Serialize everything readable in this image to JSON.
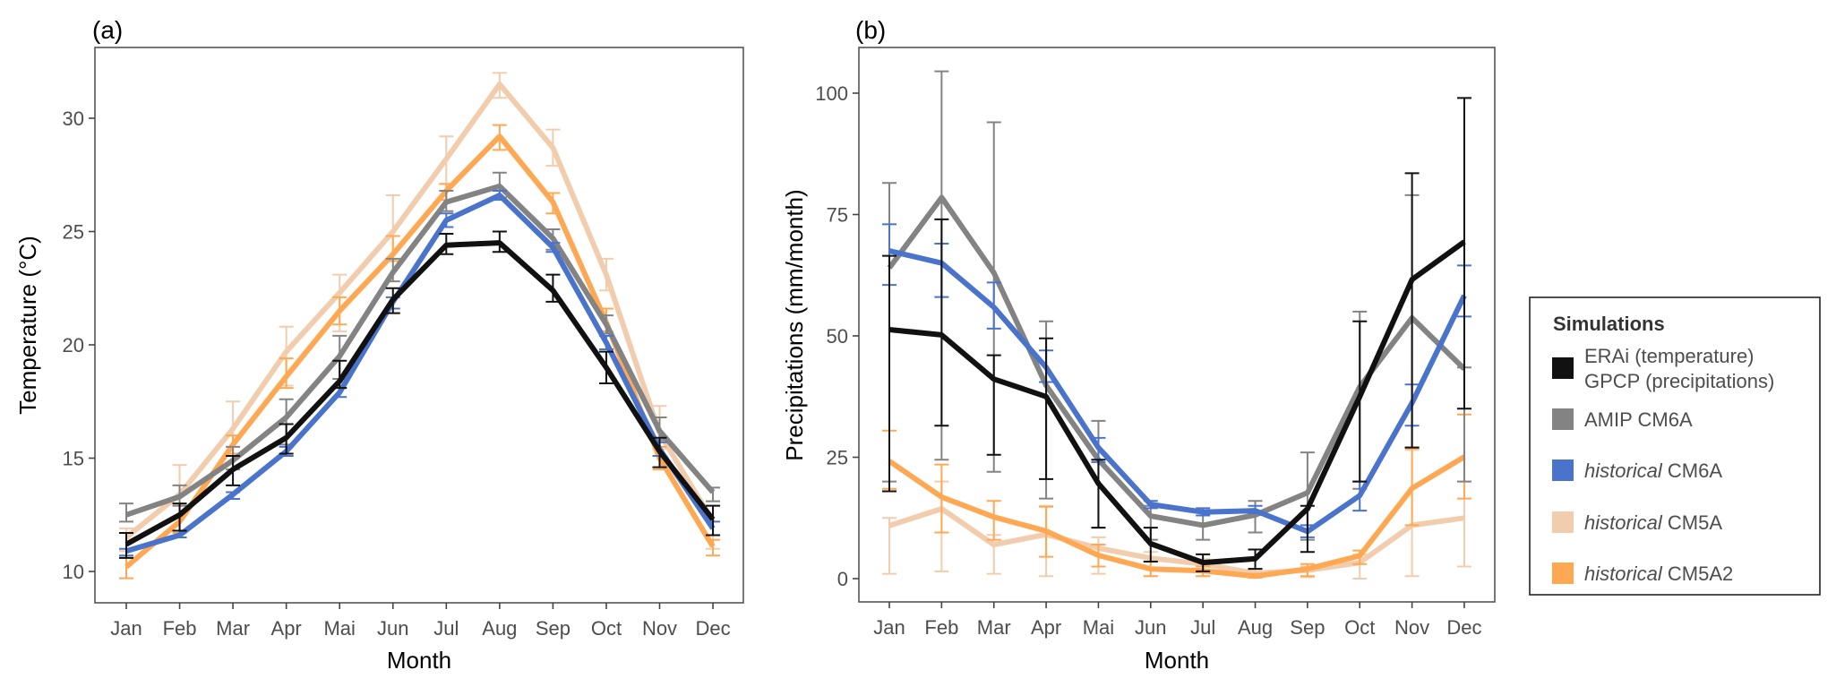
{
  "figure": {
    "legend": {
      "title": "Simulations",
      "entries": [
        {
          "key": "obs",
          "lines": [
            "ERAi (temperature)",
            "GPCP (precipitations)"
          ],
          "italic_prefix": "",
          "color": "#111111"
        },
        {
          "key": "amip_cm6a",
          "lines": [
            "AMIP CM6A"
          ],
          "italic_prefix": "",
          "color": "#838383"
        },
        {
          "key": "hist_cm6a",
          "lines": [
            "CM6A"
          ],
          "italic_prefix": "historical",
          "color": "#4A73CC"
        },
        {
          "key": "hist_cm5a",
          "lines": [
            "CM5A"
          ],
          "italic_prefix": "historical",
          "color": "#F1CDAE"
        },
        {
          "key": "hist_cm5a2",
          "lines": [
            "CM5A2"
          ],
          "italic_prefix": "historical",
          "color": "#FFA853"
        }
      ],
      "placement": "right"
    }
  },
  "chart_data": [
    {
      "panel": "(a)",
      "type": "line",
      "xlabel": "Month",
      "ylabel": "Temperature (°C)",
      "categories": [
        "Jan",
        "Feb",
        "Mar",
        "Apr",
        "Mai",
        "Jun",
        "Jul",
        "Aug",
        "Sep",
        "Oct",
        "Nov",
        "Dec"
      ],
      "ylim": [
        8.6,
        33.2
      ],
      "yticks": [
        10,
        15,
        20,
        25,
        30
      ],
      "grid": false,
      "series": [
        {
          "key": "hist_cm5a",
          "name": "historical CM5A",
          "color": "#F1CDAE",
          "values": [
            11.5,
            13.4,
            16.3,
            19.7,
            22.3,
            25.0,
            28.2,
            31.5,
            28.7,
            23.1,
            16.1,
            12.2
          ],
          "err_low": [
            10.9,
            11.8,
            15.2,
            18.2,
            20.6,
            23.7,
            27.1,
            30.9,
            27.9,
            22.4,
            15.4,
            11.0
          ],
          "err_high": [
            11.9,
            14.7,
            17.5,
            20.8,
            23.1,
            26.6,
            29.2,
            32.0,
            29.5,
            23.8,
            17.3,
            12.9
          ]
        },
        {
          "key": "hist_cm5a2",
          "name": "historical CM5A2",
          "color": "#FFA853",
          "values": [
            10.2,
            12.2,
            15.6,
            18.6,
            21.5,
            24.0,
            26.8,
            29.2,
            26.3,
            21.0,
            15.0,
            11.1
          ],
          "err_low": [
            9.7,
            11.7,
            15.2,
            18.1,
            20.9,
            23.7,
            26.4,
            28.6,
            25.8,
            20.6,
            14.5,
            10.7
          ],
          "err_high": [
            10.6,
            12.9,
            16.0,
            19.4,
            22.1,
            24.8,
            27.1,
            29.7,
            26.7,
            21.6,
            15.5,
            11.4
          ]
        },
        {
          "key": "amip_cm6a",
          "name": "AMIP CM6A",
          "color": "#838383",
          "values": [
            12.5,
            13.3,
            14.9,
            16.8,
            19.5,
            23.2,
            26.3,
            27.0,
            24.7,
            20.9,
            16.2,
            13.5
          ],
          "err_low": [
            12.2,
            12.9,
            14.5,
            15.6,
            18.5,
            22.8,
            25.9,
            26.5,
            24.2,
            20.5,
            15.8,
            13.1
          ],
          "err_high": [
            13.0,
            13.8,
            15.5,
            17.6,
            20.4,
            23.8,
            26.8,
            27.6,
            25.1,
            21.3,
            16.8,
            13.7
          ]
        },
        {
          "key": "hist_cm6a",
          "name": "historical CM6A",
          "color": "#4A73CC",
          "values": [
            10.9,
            11.6,
            13.4,
            15.3,
            17.9,
            21.9,
            25.5,
            26.6,
            24.3,
            20.1,
            15.4,
            11.9
          ],
          "err_low": [
            10.7,
            11.5,
            13.2,
            15.1,
            17.7,
            21.6,
            25.2,
            26.4,
            24.1,
            19.8,
            15.1,
            11.6
          ],
          "err_high": [
            11.0,
            11.8,
            13.5,
            15.5,
            18.1,
            22.1,
            25.8,
            26.8,
            24.5,
            20.4,
            15.7,
            12.2
          ]
        },
        {
          "key": "obs",
          "name": "ERAi (temperature)",
          "color": "#111111",
          "values": [
            11.2,
            12.5,
            14.5,
            15.9,
            18.4,
            22.0,
            24.4,
            24.5,
            22.4,
            19.0,
            15.3,
            12.3
          ],
          "err_low": [
            10.6,
            11.8,
            13.8,
            15.2,
            18.1,
            21.4,
            24.0,
            24.1,
            21.9,
            18.3,
            14.6,
            11.6
          ],
          "err_high": [
            11.7,
            13.0,
            15.1,
            16.5,
            19.3,
            22.5,
            24.9,
            25.0,
            23.1,
            19.7,
            15.9,
            12.9
          ]
        }
      ]
    },
    {
      "panel": "(b)",
      "type": "line",
      "xlabel": "Month",
      "ylabel": "Precipitations (mm/month)",
      "categories": [
        "Jan",
        "Feb",
        "Mar",
        "Apr",
        "Mai",
        "Jun",
        "Jul",
        "Aug",
        "Sep",
        "Oct",
        "Nov",
        "Dec"
      ],
      "ylim": [
        -5,
        109
      ],
      "yticks": [
        0,
        25,
        50,
        75,
        100
      ],
      "grid": false,
      "series": [
        {
          "key": "hist_cm5a",
          "name": "historical CM5A",
          "color": "#F1CDAE",
          "values": [
            10.9,
            14.4,
            7.0,
            9.1,
            6.3,
            4.2,
            3.0,
            1.1,
            1.7,
            3.3,
            11.0,
            12.5
          ],
          "err_low": [
            1.0,
            1.5,
            1.0,
            0.5,
            1.0,
            0.5,
            0.5,
            0.2,
            0.3,
            0.0,
            0.5,
            2.5
          ],
          "err_high": [
            12.5,
            20.0,
            9.0,
            15.0,
            8.5,
            5.5,
            4.0,
            2.0,
            2.5,
            5.0,
            26.5,
            20.0
          ]
        },
        {
          "key": "hist_cm5a2",
          "name": "historical CM5A2",
          "color": "#FFA853",
          "values": [
            24.2,
            16.8,
            12.7,
            9.8,
            4.8,
            2.0,
            1.6,
            0.5,
            2.0,
            4.7,
            18.6,
            25.1
          ],
          "err_low": [
            18.5,
            9.5,
            8.0,
            4.5,
            2.5,
            0.5,
            0.5,
            0.2,
            0.5,
            3.0,
            11.0,
            16.5
          ],
          "err_high": [
            30.5,
            23.5,
            16.0,
            14.8,
            7.0,
            3.5,
            2.5,
            1.0,
            3.0,
            5.8,
            26.8,
            33.8
          ]
        },
        {
          "key": "amip_cm6a",
          "name": "AMIP CM6A",
          "color": "#838383",
          "values": [
            64.0,
            78.5,
            63.0,
            39.8,
            24.5,
            12.9,
            11.0,
            13.1,
            17.7,
            39.5,
            53.7,
            43.2
          ],
          "err_low": [
            20.0,
            24.5,
            22.0,
            16.5,
            10.5,
            8.0,
            8.0,
            9.5,
            8.0,
            18.5,
            27.0,
            20.0
          ],
          "err_high": [
            81.5,
            104.5,
            94.0,
            53.0,
            32.5,
            15.0,
            14.0,
            16.0,
            26.0,
            55.0,
            79.0,
            43.5
          ]
        },
        {
          "key": "hist_cm6a",
          "name": "historical CM6A",
          "color": "#4A73CC",
          "values": [
            67.5,
            65.0,
            55.9,
            43.5,
            27.0,
            15.3,
            13.7,
            14.0,
            9.7,
            17.1,
            36.2,
            58.3
          ],
          "err_low": [
            60.5,
            58.0,
            51.5,
            40.5,
            24.0,
            14.5,
            13.0,
            13.5,
            8.5,
            14.0,
            31.5,
            54.0
          ],
          "err_high": [
            73.0,
            69.0,
            61.0,
            47.0,
            29.0,
            16.0,
            14.5,
            15.0,
            11.0,
            20.0,
            40.0,
            64.5
          ]
        },
        {
          "key": "obs",
          "name": "GPCP (precipitations)",
          "color": "#111111",
          "values": [
            51.3,
            50.2,
            41.1,
            37.5,
            19.6,
            7.2,
            3.3,
            4.1,
            14.4,
            37.5,
            61.6,
            69.4
          ],
          "err_low": [
            18.0,
            31.5,
            25.5,
            20.5,
            10.5,
            3.5,
            1.5,
            2.0,
            5.5,
            20.0,
            27.0,
            35.0
          ],
          "err_high": [
            66.5,
            74.0,
            46.0,
            49.5,
            24.5,
            10.5,
            5.0,
            6.0,
            15.0,
            53.0,
            83.5,
            99.0
          ]
        }
      ]
    }
  ]
}
